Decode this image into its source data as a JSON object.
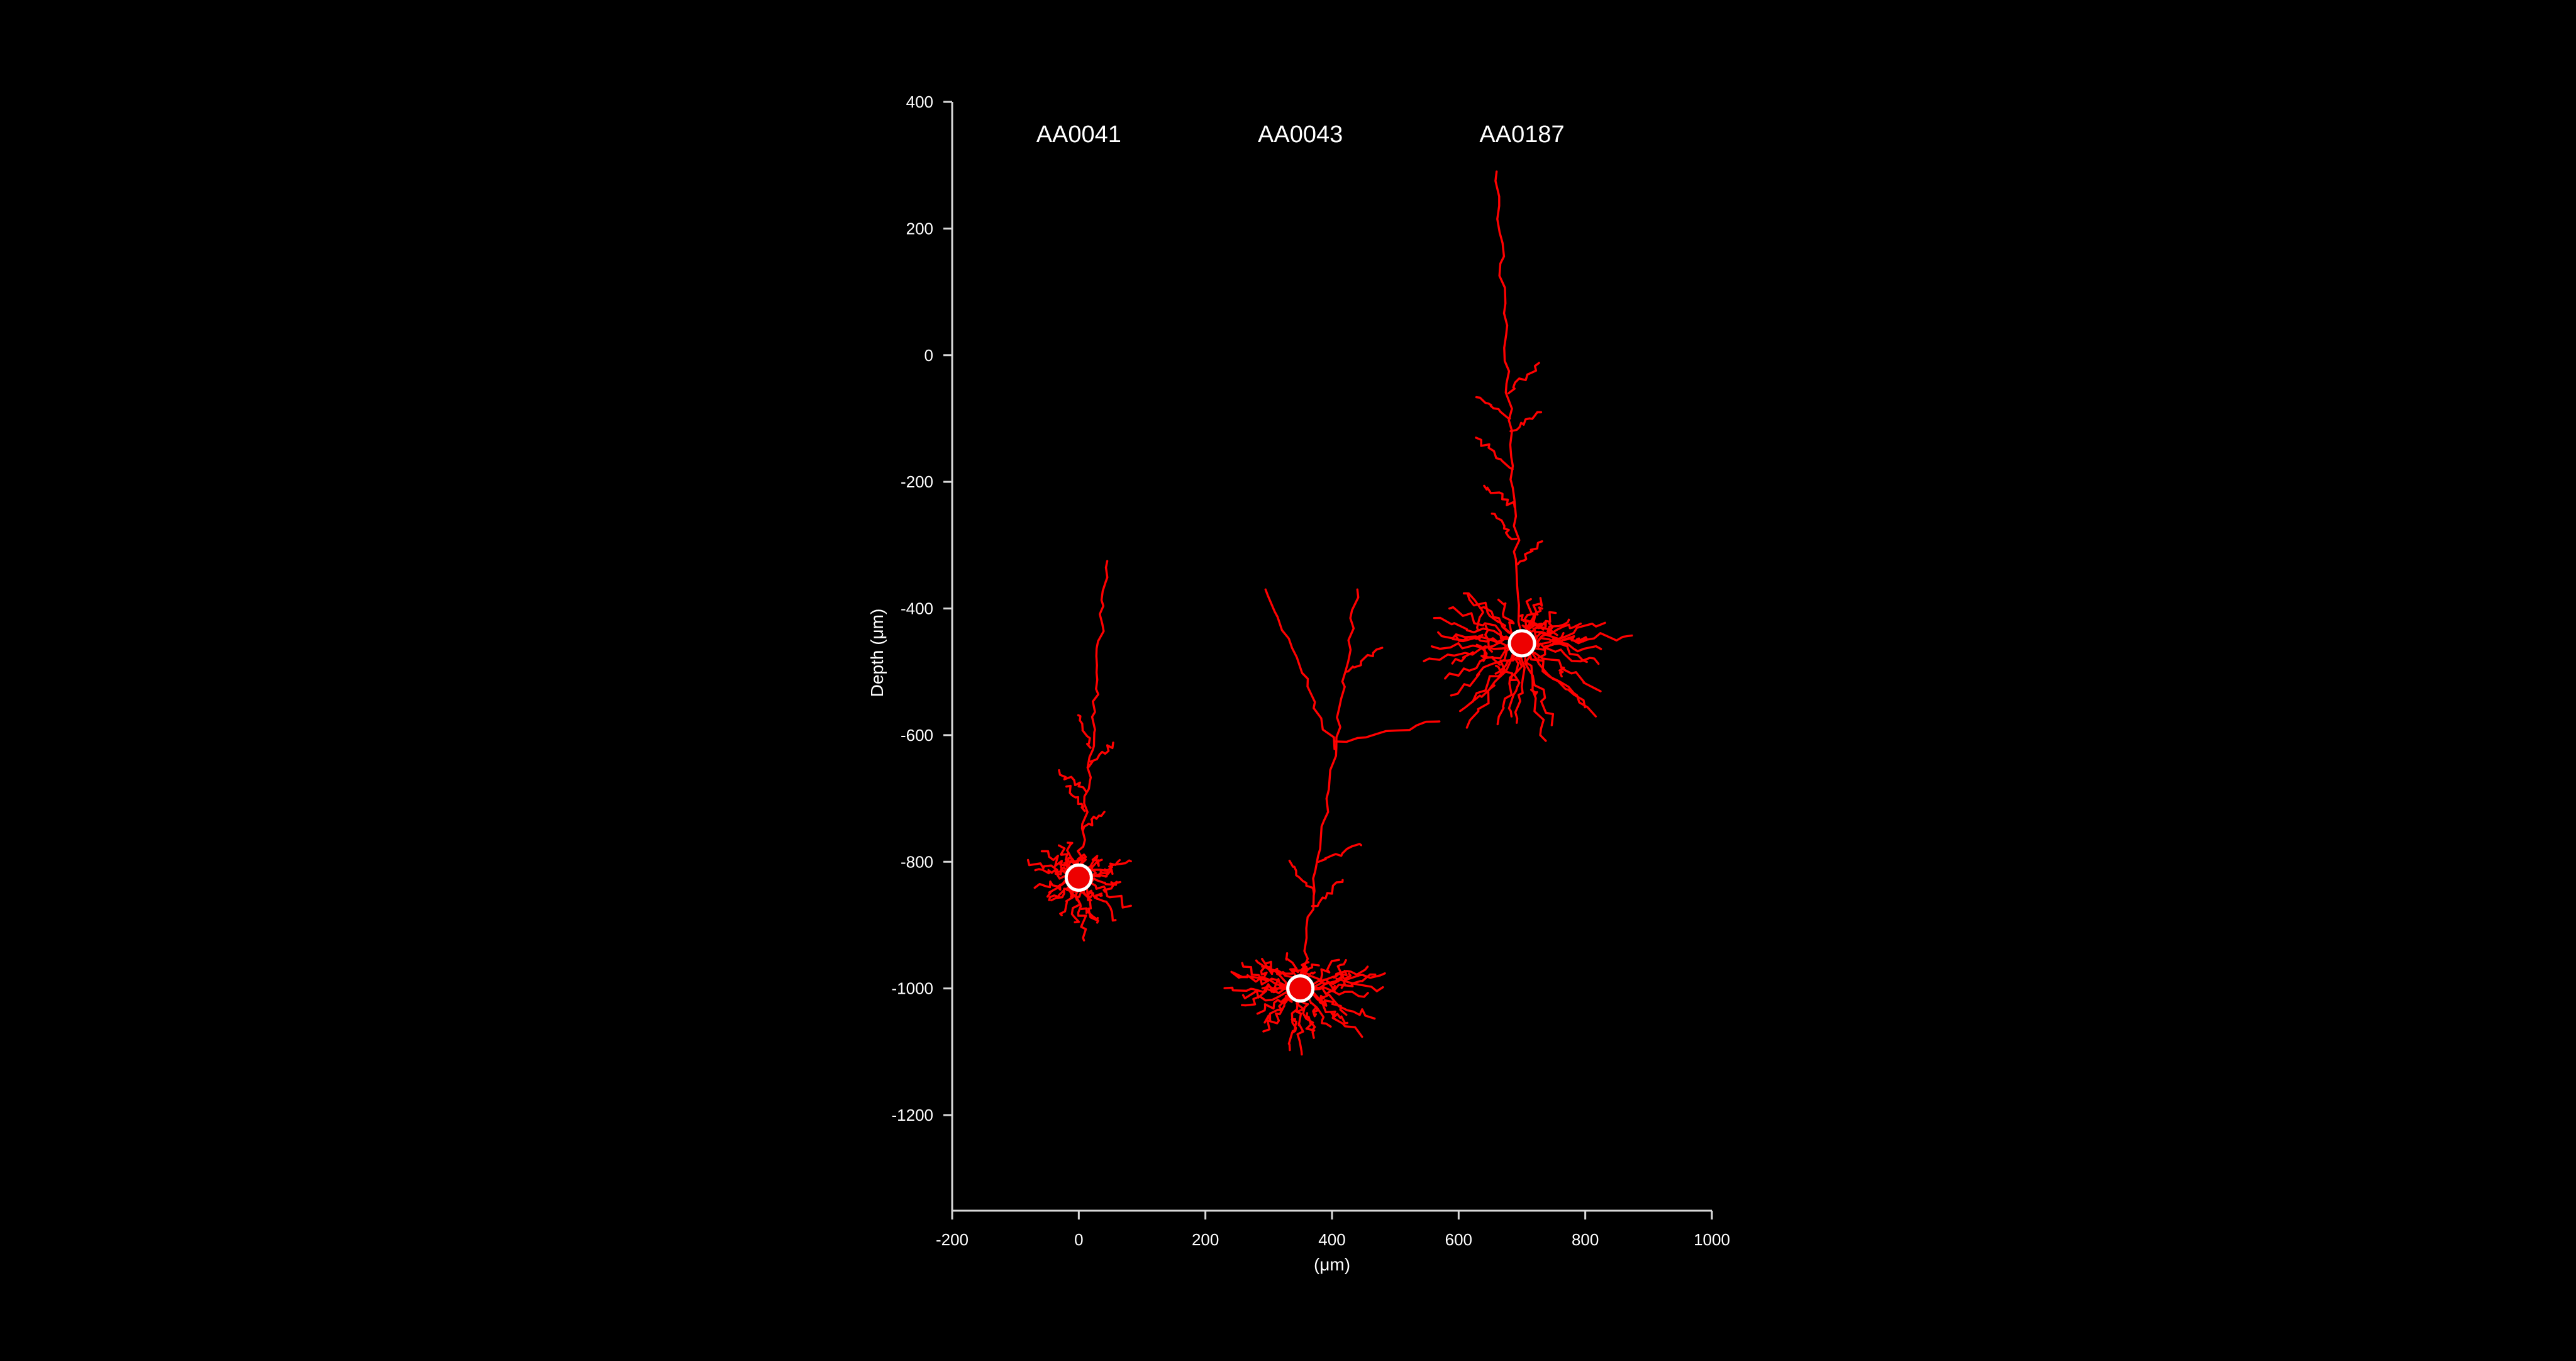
{
  "chart_data": {
    "type": "scatter",
    "title": "",
    "xlabel": "(μm)",
    "ylabel": "Depth (μm)",
    "xlim": [
      -200,
      1000
    ],
    "ylim": [
      -1350,
      400
    ],
    "x_ticks": [
      -200,
      0,
      200,
      400,
      600,
      800,
      1000
    ],
    "y_ticks": [
      -1200,
      -1000,
      -800,
      -600,
      -400,
      -200,
      0,
      200,
      400
    ],
    "x_tick_labels": [
      "-200",
      "0",
      "200",
      "400",
      "600",
      "800",
      "1000"
    ],
    "y_tick_labels": [
      "-1200",
      "-1000",
      "-800",
      "-600",
      "-400",
      "-200",
      "0",
      "200",
      "400"
    ],
    "grid": false,
    "colors": {
      "background": "#000000",
      "neuron": "#ff0000",
      "soma_outline": "#ffffff",
      "axis": "#d8d8d8"
    },
    "neurons": [
      {
        "name": "AA0041",
        "soma": {
          "x": 0,
          "y": -825
        },
        "apical_top": {
          "x": 45,
          "y": -325
        },
        "basal_extent": {
          "x": [
            -75,
            120
          ],
          "y": [
            -945,
            -740
          ]
        },
        "apical_branches": [
          {
            "y": -620,
            "dx": -20
          },
          {
            "y": -650,
            "dx": 40
          },
          {
            "y": -690,
            "dx": -45
          },
          {
            "y": -720,
            "dx": -30
          },
          {
            "y": -750,
            "dx": 35
          }
        ],
        "basal_count": 20
      },
      {
        "name": "AA0043",
        "soma": {
          "x": 350,
          "y": -1000
        },
        "apical_top": {
          "x": 440,
          "y": -370
        },
        "apical_left_top": {
          "x": 295,
          "y": -370
        },
        "basal_extent": {
          "x": [
            205,
            505
          ],
          "y": [
            -1110,
            -890
          ]
        },
        "apical_branches": [
          {
            "y": -500,
            "dx": 60
          },
          {
            "y": -610,
            "dx": 170
          },
          {
            "y": -800,
            "dx": 70
          },
          {
            "y": -850,
            "dx": -40
          },
          {
            "y": -870,
            "dx": 50
          }
        ],
        "basal_count": 26
      },
      {
        "name": "AA0187",
        "soma": {
          "x": 700,
          "y": -455
        },
        "apical_top": {
          "x": 660,
          "y": 290
        },
        "basal_extent": {
          "x": [
            550,
            915
          ],
          "y": [
            -700,
            -365
          ]
        },
        "apical_branches": [
          {
            "y": -60,
            "dx": 50
          },
          {
            "y": -100,
            "dx": -55
          },
          {
            "y": -120,
            "dx": 50
          },
          {
            "y": -180,
            "dx": -60
          },
          {
            "y": -240,
            "dx": -50
          },
          {
            "y": -290,
            "dx": -40
          },
          {
            "y": -330,
            "dx": 40
          }
        ],
        "basal_count": 32
      }
    ]
  }
}
